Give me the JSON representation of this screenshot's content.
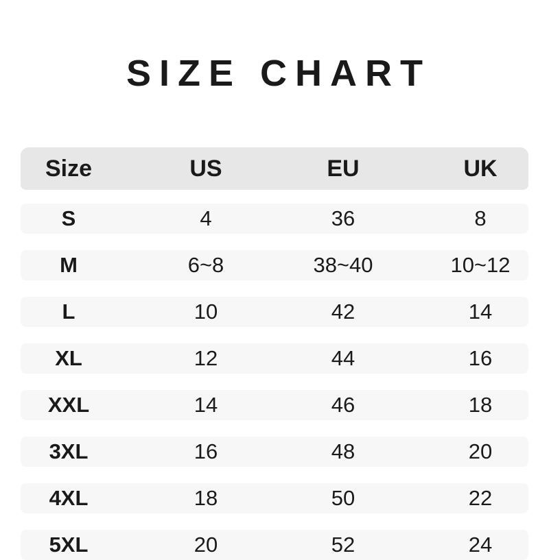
{
  "page": {
    "title": "SIZE CHART"
  },
  "colors": {
    "page_bg": "#ffffff",
    "header_bg": "#e7e7e7",
    "row_bg": "#f7f7f7",
    "text": "#1a1a1a"
  },
  "chart_data": {
    "type": "table",
    "title": "SIZE CHART",
    "columns": [
      "Size",
      "US",
      "EU",
      "UK"
    ],
    "rows": [
      [
        "S",
        "4",
        "36",
        "8"
      ],
      [
        "M",
        "6~8",
        "38~40",
        "10~12"
      ],
      [
        "L",
        "10",
        "42",
        "14"
      ],
      [
        "XL",
        "12",
        "44",
        "16"
      ],
      [
        "XXL",
        "14",
        "46",
        "18"
      ],
      [
        "3XL",
        "16",
        "48",
        "20"
      ],
      [
        "4XL",
        "18",
        "50",
        "22"
      ],
      [
        "5XL",
        "20",
        "52",
        "24"
      ]
    ],
    "layout": {
      "header_position": "top",
      "row_striping": "every-row-light-gray",
      "column_alignment": "center"
    }
  }
}
